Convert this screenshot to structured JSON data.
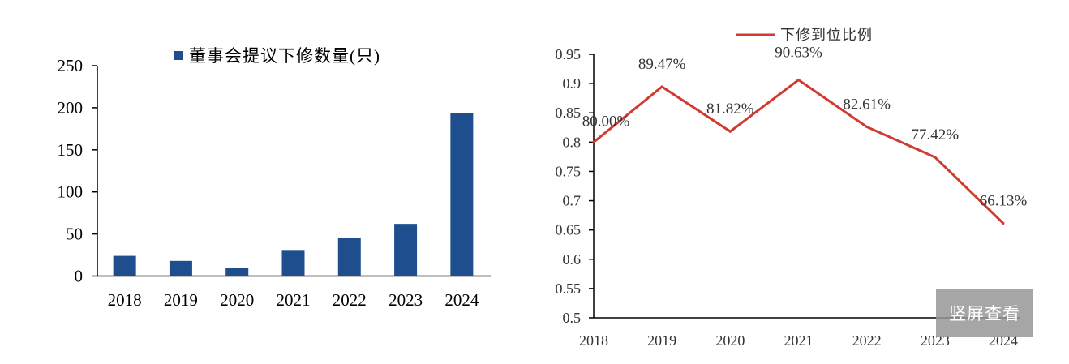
{
  "chart_data": [
    {
      "type": "bar",
      "title": "",
      "legend": [
        "董事会提议下修数量(只)"
      ],
      "legend_position": "top",
      "categories": [
        "2018",
        "2019",
        "2020",
        "2021",
        "2022",
        "2023",
        "2024"
      ],
      "series": [
        {
          "name": "董事会提议下修数量(只)",
          "values": [
            24,
            18,
            10,
            31,
            45,
            62,
            194
          ]
        }
      ],
      "ylim": [
        0,
        250
      ],
      "yticks": [
        "0",
        "50",
        "100",
        "150",
        "200",
        "250"
      ],
      "color": "#1f4e8f",
      "grid": false
    },
    {
      "type": "line",
      "legend": [
        "下修到位比例"
      ],
      "legend_position": "top",
      "categories": [
        "2018",
        "2019",
        "2020",
        "2021",
        "2022",
        "2023",
        "2024"
      ],
      "series": [
        {
          "name": "下修到位比例",
          "values": [
            0.8,
            0.8947,
            0.8182,
            0.9063,
            0.8261,
            0.7742,
            0.6613
          ]
        }
      ],
      "data_labels": [
        "80.00%",
        "89.47%",
        "81.82%",
        "90.63%",
        "82.61%",
        "77.42%",
        "66.13%"
      ],
      "ylim": [
        0.5,
        0.95
      ],
      "yticks": [
        "0.5",
        "0.55",
        "0.6",
        "0.65",
        "0.7",
        "0.75",
        "0.8",
        "0.85",
        "0.9",
        "0.95"
      ],
      "color": "#d03a31",
      "grid": false
    }
  ],
  "watermark_button": "竖屏查看"
}
